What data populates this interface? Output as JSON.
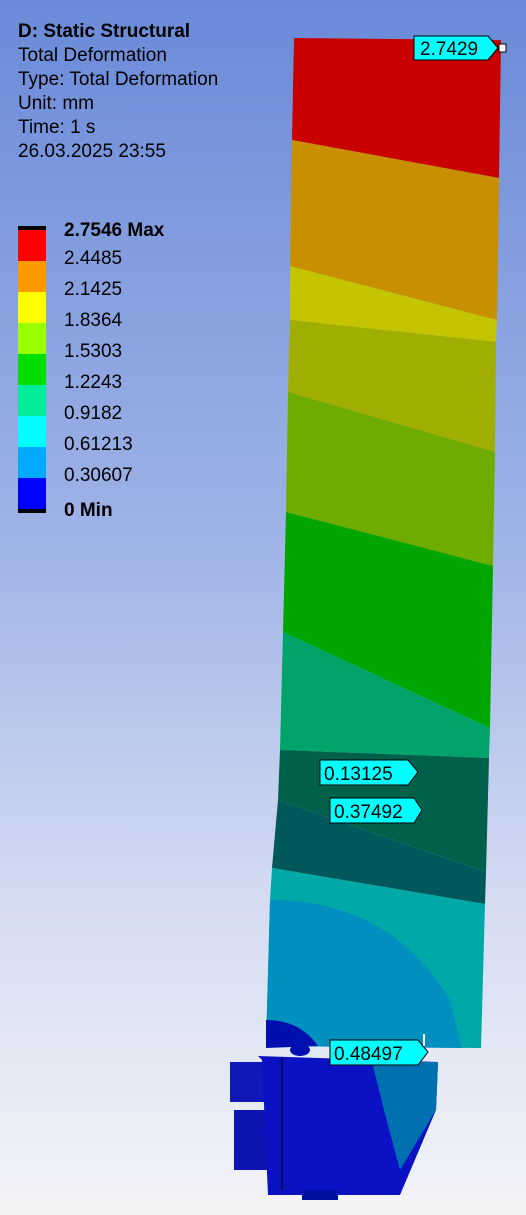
{
  "header": {
    "title": "D: Static Structural",
    "result": "Total Deformation",
    "type": "Type: Total Deformation",
    "unit": "Unit: mm",
    "time": "Time: 1 s",
    "date": "26.03.2025 23:55"
  },
  "legend": {
    "max_label": "2.7546 Max",
    "min_label": "0 Min",
    "levels": [
      "2.4485",
      "2.1425",
      "1.8364",
      "1.5303",
      "1.2243",
      "0.9182",
      "0.61213",
      "0.30607"
    ],
    "colors": [
      "#ff0000",
      "#ff9900",
      "#ffff00",
      "#99ff00",
      "#00dd00",
      "#00ee99",
      "#00ffff",
      "#00aaff",
      "#0000ff"
    ]
  },
  "probes": {
    "p_max": "2.7429",
    "p1": "0.13125",
    "p2": "0.37492",
    "p3": "0.48497"
  }
}
